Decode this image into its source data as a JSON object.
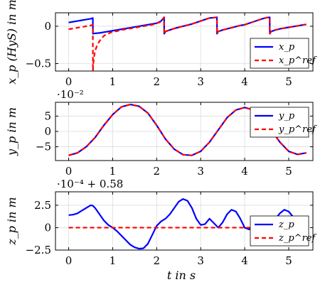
{
  "figure": {
    "xlabel": "t in s"
  },
  "chart_data": [
    {
      "type": "line",
      "ylabel": "x_p (HyS) in m",
      "scale_label": "",
      "xlim": [
        -0.3,
        5.55
      ],
      "ylim": [
        -0.6,
        0.18
      ],
      "xticks": [
        0,
        1,
        2,
        3,
        4,
        5
      ],
      "yticks": [
        0,
        -0.5
      ],
      "ytick_labels": [
        "0",
        "−0.5"
      ],
      "grid": true,
      "legend_position": "bottom-right",
      "series": [
        {
          "name": "x_p",
          "color": "#0000ff",
          "dash": "solid",
          "x": [
            0,
            0.1,
            0.2,
            0.3,
            0.4,
            0.5,
            0.549,
            0.551,
            0.6,
            0.7,
            0.8,
            0.9,
            1.0,
            1.1,
            1.2,
            1.3,
            1.4,
            1.5,
            1.6,
            1.7,
            1.8,
            1.9,
            2.0,
            2.1,
            2.169,
            2.171,
            2.2,
            2.3,
            2.4,
            2.5,
            2.6,
            2.7,
            2.8,
            2.9,
            3.0,
            3.1,
            3.2,
            3.3,
            3.369,
            3.371,
            3.4,
            3.5,
            3.6,
            3.7,
            3.8,
            3.9,
            4.0,
            4.1,
            4.2,
            4.3,
            4.4,
            4.5,
            4.569,
            4.571,
            4.6,
            4.7,
            4.8,
            4.9,
            5.0,
            5.1,
            5.2,
            5.3,
            5.4
          ],
          "y": [
            0.05,
            0.06,
            0.07,
            0.08,
            0.09,
            0.1,
            0.11,
            -0.1,
            -0.095,
            -0.09,
            -0.08,
            -0.07,
            -0.06,
            -0.05,
            -0.04,
            -0.03,
            -0.02,
            -0.01,
            0.0,
            0.01,
            0.02,
            0.03,
            0.04,
            0.07,
            0.12,
            -0.1,
            -0.07,
            -0.05,
            -0.03,
            -0.015,
            0.0,
            0.015,
            0.03,
            0.05,
            0.07,
            0.09,
            0.11,
            0.115,
            0.12,
            -0.1,
            -0.07,
            -0.05,
            -0.035,
            -0.02,
            -0.005,
            0.01,
            0.02,
            0.04,
            0.06,
            0.08,
            0.1,
            0.115,
            0.12,
            -0.1,
            -0.07,
            -0.05,
            -0.035,
            -0.025,
            -0.015,
            -0.005,
            0.005,
            0.015,
            0.025
          ]
        },
        {
          "name": "x_p^ref",
          "color": "#ff0000",
          "dash": "dashed",
          "x": [
            0,
            0.1,
            0.2,
            0.3,
            0.4,
            0.5,
            0.549,
            0.551,
            0.56,
            0.58,
            0.6,
            0.65,
            0.7,
            0.75,
            0.8,
            0.85,
            0.9,
            0.95,
            1.0,
            1.1,
            1.2,
            1.3,
            1.4,
            1.5,
            1.6,
            1.7,
            1.8,
            1.9,
            2.0,
            2.1,
            2.169,
            2.171,
            2.2,
            2.3,
            2.4,
            2.5,
            2.6,
            2.7,
            2.8,
            2.9,
            3.0,
            3.1,
            3.2,
            3.3,
            3.369,
            3.371,
            3.4,
            3.5,
            3.6,
            3.7,
            3.8,
            3.9,
            4.0,
            4.1,
            4.2,
            4.3,
            4.4,
            4.5,
            4.569,
            4.571,
            4.6,
            4.7,
            4.8,
            4.9,
            5.0,
            5.1,
            5.2,
            5.3,
            5.4
          ],
          "y": [
            -0.04,
            -0.03,
            -0.02,
            -0.01,
            0.0,
            0.01,
            0.02,
            -0.6,
            -0.5,
            -0.4,
            -0.33,
            -0.25,
            -0.2,
            -0.16,
            -0.13,
            -0.11,
            -0.1,
            -0.085,
            -0.075,
            -0.065,
            -0.05,
            -0.04,
            -0.03,
            -0.02,
            -0.01,
            0.0,
            0.01,
            0.02,
            0.04,
            0.06,
            0.12,
            -0.1,
            -0.07,
            -0.05,
            -0.03,
            -0.015,
            0.0,
            0.015,
            0.03,
            0.05,
            0.07,
            0.09,
            0.11,
            0.115,
            0.12,
            -0.1,
            -0.07,
            -0.05,
            -0.035,
            -0.02,
            -0.005,
            0.01,
            0.02,
            0.04,
            0.06,
            0.08,
            0.1,
            0.115,
            0.12,
            -0.1,
            -0.07,
            -0.05,
            -0.035,
            -0.025,
            -0.015,
            -0.005,
            0.005,
            0.015,
            0.025
          ]
        }
      ]
    },
    {
      "type": "line",
      "ylabel": "y_p in m",
      "scale_label": "·10⁻²",
      "xlim": [
        -0.3,
        5.55
      ],
      "ylim": [
        -9.5,
        9.5
      ],
      "xticks": [
        0,
        1,
        2,
        3,
        4,
        5
      ],
      "yticks": [
        5,
        0,
        -5
      ],
      "ytick_labels": [
        "5",
        "0",
        "−5"
      ],
      "grid": true,
      "legend_position": "top-right",
      "series": [
        {
          "name": "y_p",
          "color": "#0000ff",
          "dash": "solid",
          "x": [
            0,
            0.2,
            0.4,
            0.6,
            0.8,
            1.0,
            1.2,
            1.4,
            1.6,
            1.8,
            2.0,
            2.2,
            2.4,
            2.6,
            2.8,
            3.0,
            3.2,
            3.4,
            3.6,
            3.8,
            4.0,
            4.2,
            4.4,
            4.6,
            4.8,
            5.0,
            5.2,
            5.4
          ],
          "y": [
            -7.8,
            -7.0,
            -5.0,
            -2.0,
            2.0,
            5.5,
            8.0,
            8.8,
            8.2,
            6.0,
            2.0,
            -2.5,
            -5.8,
            -7.6,
            -7.8,
            -6.5,
            -3.5,
            0.5,
            4.5,
            7.0,
            7.8,
            7.0,
            4.5,
            0.5,
            -3.5,
            -6.5,
            -7.5,
            -7.0
          ]
        },
        {
          "name": "y_p^ref",
          "color": "#ff0000",
          "dash": "dashed",
          "x": [
            0,
            0.2,
            0.4,
            0.6,
            0.8,
            1.0,
            1.2,
            1.4,
            1.6,
            1.8,
            2.0,
            2.2,
            2.4,
            2.6,
            2.8,
            3.0,
            3.2,
            3.4,
            3.6,
            3.8,
            4.0,
            4.2,
            4.4,
            4.6,
            4.8,
            5.0,
            5.2,
            5.4
          ],
          "y": [
            -7.8,
            -7.0,
            -5.0,
            -2.0,
            2.0,
            5.5,
            8.0,
            8.8,
            8.2,
            6.0,
            2.0,
            -2.5,
            -5.8,
            -7.6,
            -7.8,
            -6.5,
            -3.5,
            0.5,
            4.5,
            7.0,
            7.8,
            7.0,
            4.5,
            0.5,
            -3.5,
            -6.5,
            -7.5,
            -7.0
          ]
        }
      ]
    },
    {
      "type": "line",
      "ylabel": "z_p in m",
      "scale_label": "·10⁻⁴ + 0.58",
      "xlim": [
        -0.3,
        5.55
      ],
      "ylim": [
        -2.5,
        4.0
      ],
      "xticks": [
        0,
        1,
        2,
        3,
        4,
        5
      ],
      "yticks": [
        2.5,
        0,
        -2.5
      ],
      "ytick_labels": [
        "2.5",
        "0",
        "−2.5"
      ],
      "grid": true,
      "legend_position": "bottom-right",
      "series": [
        {
          "name": "z_p",
          "color": "#0000ff",
          "dash": "solid",
          "x": [
            0,
            0.1,
            0.2,
            0.3,
            0.4,
            0.5,
            0.55,
            0.6,
            0.7,
            0.8,
            0.9,
            1.0,
            1.1,
            1.2,
            1.3,
            1.4,
            1.5,
            1.6,
            1.7,
            1.8,
            1.9,
            2.0,
            2.1,
            2.2,
            2.3,
            2.4,
            2.5,
            2.6,
            2.7,
            2.8,
            2.9,
            3.0,
            3.1,
            3.2,
            3.3,
            3.4,
            3.5,
            3.6,
            3.7,
            3.8,
            3.9,
            4.0,
            4.1,
            4.2,
            4.3,
            4.4,
            4.5,
            4.6,
            4.7,
            4.8,
            4.9,
            5.0,
            5.1,
            5.2,
            5.3
          ],
          "y": [
            1.4,
            1.45,
            1.6,
            1.9,
            2.2,
            2.5,
            2.45,
            2.2,
            1.5,
            0.8,
            0.3,
            0.0,
            -0.4,
            -0.9,
            -1.4,
            -1.9,
            -2.2,
            -2.35,
            -2.3,
            -1.8,
            -0.8,
            0.2,
            0.7,
            1.0,
            1.5,
            2.2,
            2.9,
            3.2,
            3.0,
            2.2,
            1.0,
            0.3,
            0.4,
            1.0,
            0.5,
            0.0,
            0.6,
            1.5,
            2.0,
            1.8,
            1.0,
            0.0,
            -0.2,
            0.2,
            1.0,
            0.5,
            -0.2,
            0.2,
            1.0,
            1.6,
            2.0,
            1.8,
            1.2,
            0.6,
            0.8
          ]
        },
        {
          "name": "z_p^ref",
          "color": "#ff0000",
          "dash": "dashed",
          "x": [
            0,
            5.4
          ],
          "y": [
            0,
            0
          ]
        }
      ]
    }
  ]
}
